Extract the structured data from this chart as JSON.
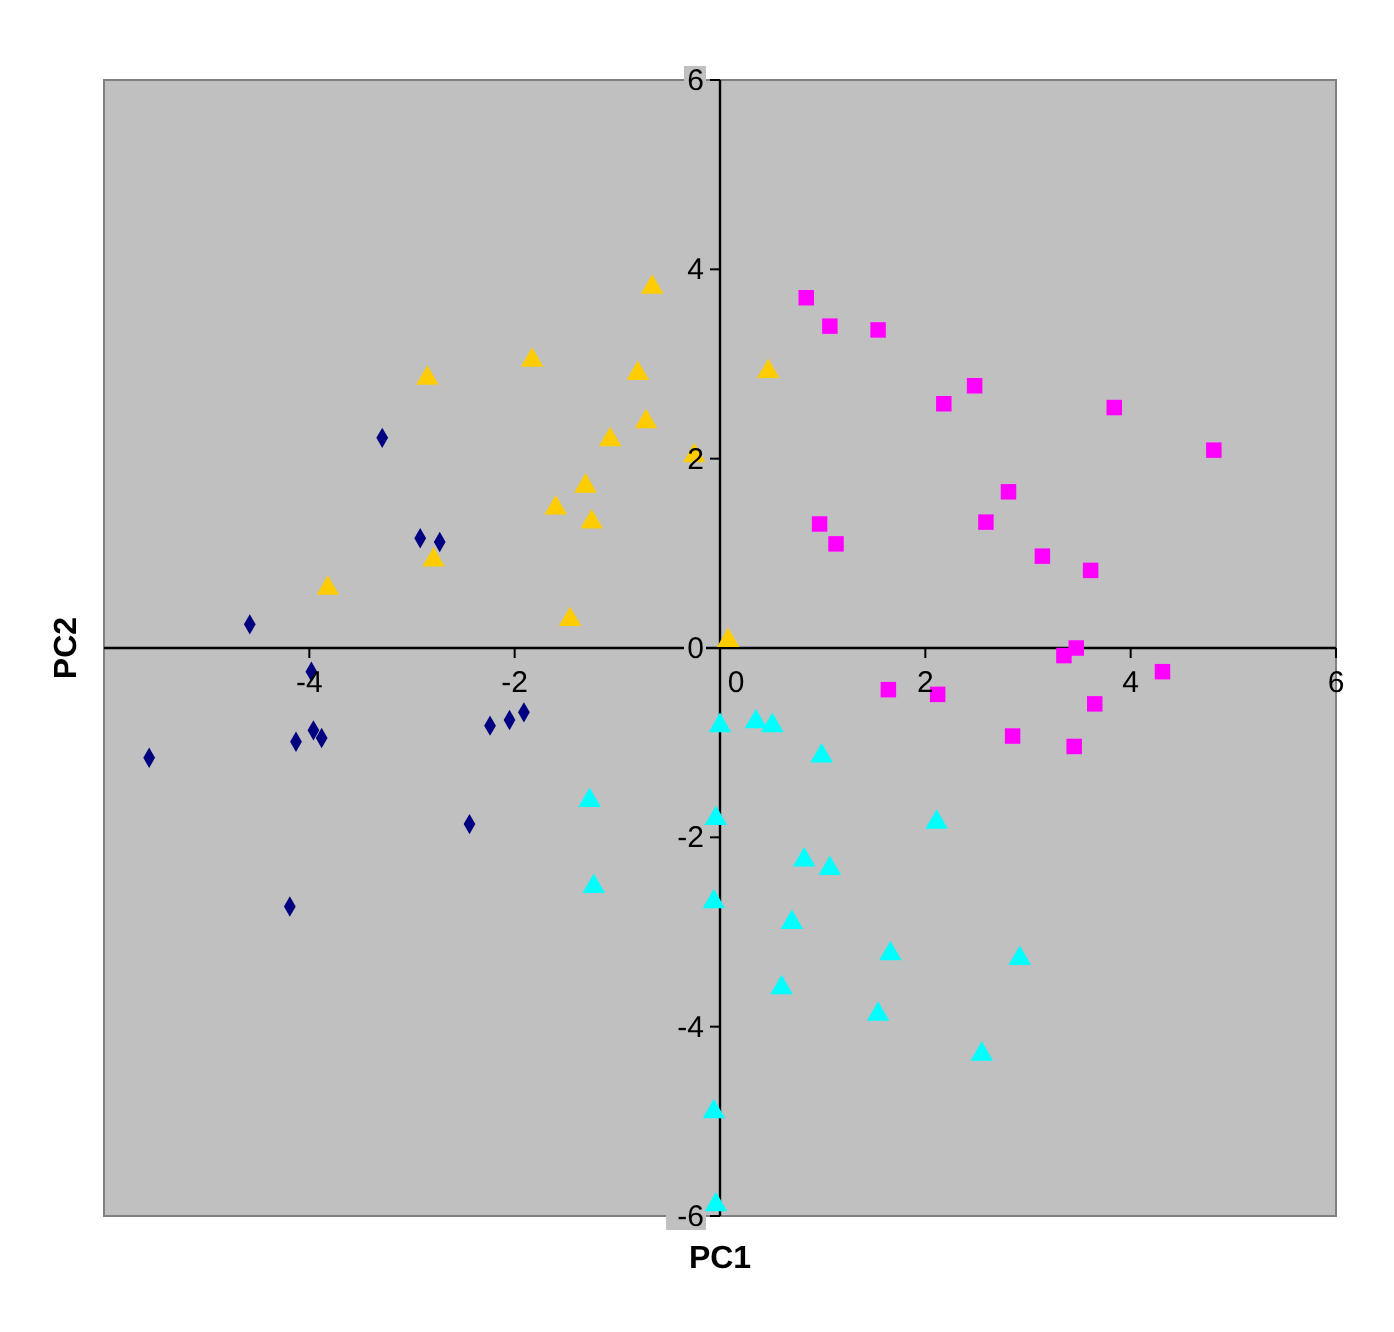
{
  "chart_data": {
    "type": "scatter",
    "xlabel": "PC1",
    "ylabel": "PC2",
    "xlim": [
      -6,
      6
    ],
    "ylim": [
      -6,
      6
    ],
    "xticks": [
      -4,
      -2,
      0,
      2,
      4,
      6
    ],
    "yticks": [
      -6,
      -4,
      -2,
      0,
      2,
      4,
      6
    ],
    "grid": false,
    "series": [
      {
        "color": "#000080",
        "marker": "diamond",
        "x": [
          -3.29,
          -2.92,
          -2.73,
          -4.58,
          -3.98,
          -3.96,
          -3.88,
          -4.13,
          -5.56,
          -2.24,
          -2.05,
          -1.91,
          -2.44,
          -4.19
        ],
        "values": [
          2.22,
          1.16,
          1.12,
          0.25,
          -0.25,
          -0.87,
          -0.95,
          -0.99,
          -1.16,
          -0.82,
          -0.76,
          -0.68,
          -1.86,
          -2.73
        ]
      },
      {
        "color": "#ffcc00",
        "marker": "triangle",
        "x": [
          -2.85,
          -1.83,
          -0.66,
          -0.8,
          -0.72,
          -1.07,
          -1.31,
          -1.25,
          -1.6,
          -2.79,
          -3.82,
          -1.46,
          -0.25,
          0.47,
          0.08
        ],
        "values": [
          2.85,
          3.04,
          3.81,
          2.9,
          2.39,
          2.2,
          1.71,
          1.33,
          1.48,
          0.93,
          0.63,
          0.3,
          2.03,
          2.92,
          0.08
        ]
      },
      {
        "color": "#ff00ff",
        "marker": "square",
        "x": [
          0.84,
          1.07,
          1.54,
          2.48,
          2.18,
          3.84,
          4.81,
          2.81,
          2.59,
          0.97,
          1.13,
          3.14,
          3.61,
          3.47,
          3.35,
          4.31,
          1.64,
          2.12,
          3.65,
          2.85,
          3.45
        ],
        "values": [
          3.7,
          3.4,
          3.36,
          2.77,
          2.58,
          2.54,
          2.09,
          1.65,
          1.33,
          1.31,
          1.1,
          0.97,
          0.82,
          0.0,
          -0.08,
          -0.25,
          -0.44,
          -0.49,
          -0.59,
          -0.93,
          -1.04
        ]
      },
      {
        "color": "#00ffff",
        "marker": "triangle",
        "x": [
          0,
          0.35,
          0.51,
          0.99,
          -0.04,
          2.11,
          0.82,
          1.07,
          -0.06,
          0.7,
          1.66,
          2.92,
          0.6,
          1.54,
          2.55,
          -0.06,
          -0.04,
          -1.27,
          -1.23
        ],
        "values": [
          -0.82,
          -0.78,
          -0.82,
          -1.14,
          -1.8,
          -1.84,
          -2.24,
          -2.33,
          -2.68,
          -2.9,
          -3.23,
          -3.28,
          -3.59,
          -3.87,
          -4.29,
          -4.9,
          -5.88,
          -1.61,
          -2.52
        ]
      }
    ]
  }
}
